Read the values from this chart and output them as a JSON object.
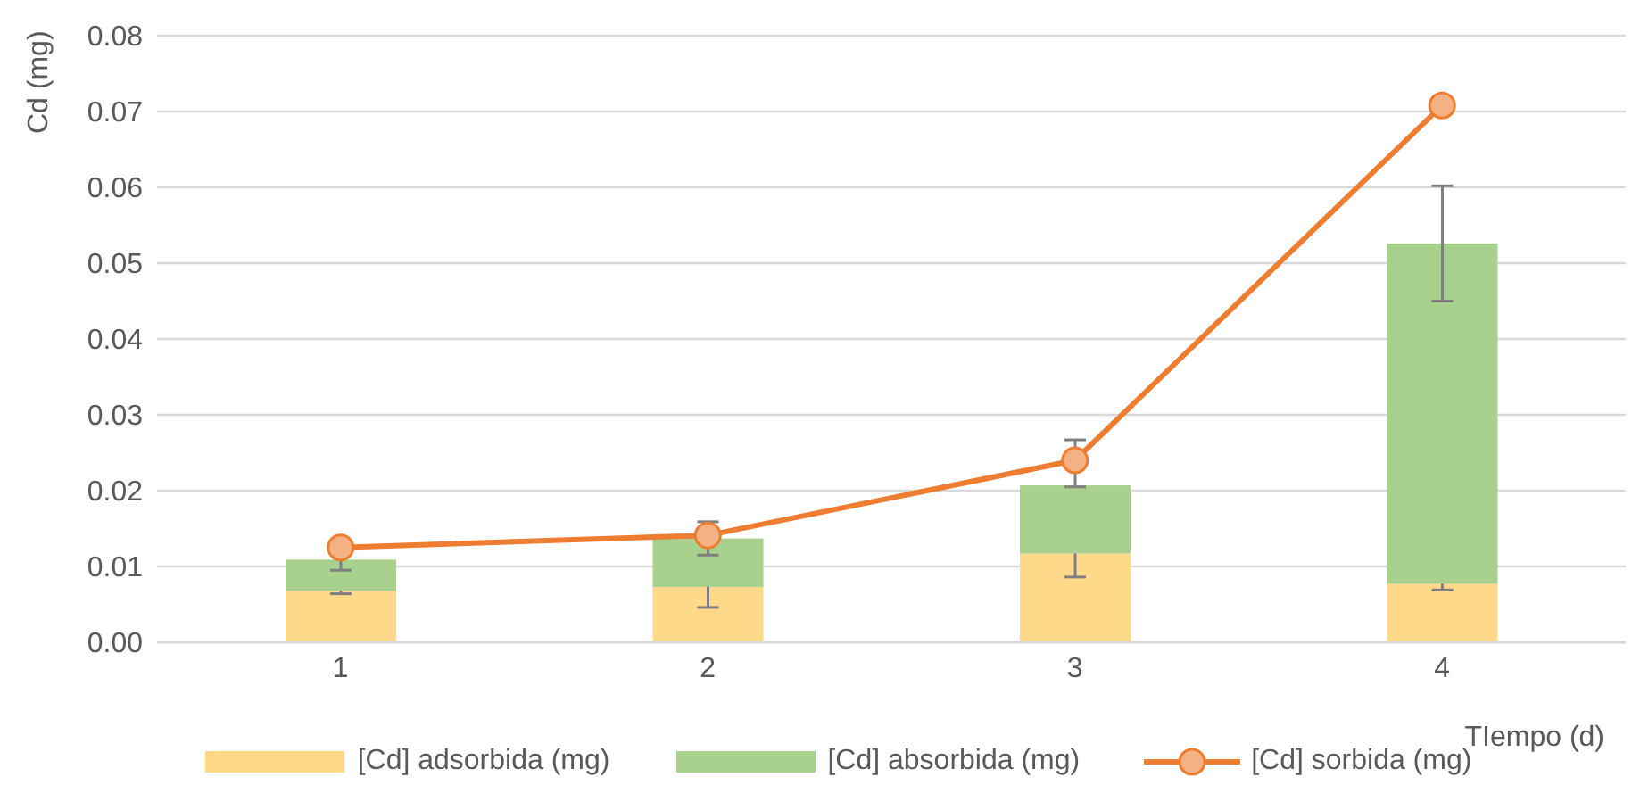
{
  "chart_data": {
    "type": "bar",
    "stacked": true,
    "xlabel": "TIempo (d)",
    "ylabel": "Cd (mg)",
    "categories": [
      "1",
      "2",
      "3",
      "4"
    ],
    "series": [
      {
        "name": "[Cd] adsorbida (mg)",
        "color": "#ffd98a",
        "values": [
          0.0068,
          0.0073,
          0.0117,
          0.0077
        ],
        "errors": [
          0.0004,
          0.0027,
          0.0031,
          0.0008
        ]
      },
      {
        "name": "[Cd] absorbida (mg)",
        "color": "#a9d18e",
        "values": [
          0.0041,
          0.0064,
          0.009,
          0.0449
        ],
        "errors": [
          0.0014,
          0.0022,
          [
            0.0205,
            0.0267
          ],
          0.0076
        ]
      },
      {
        "name": "[Cd] sorbida (mg)",
        "type": "line",
        "color": "#ed7d31",
        "marker": "circle",
        "values": [
          0.0125,
          0.0141,
          0.024,
          0.0708
        ]
      }
    ],
    "ylim": [
      0,
      0.08
    ],
    "yticks": [
      {
        "value": 0,
        "label": "0.00"
      },
      0.01,
      0.02,
      0.03,
      0.04,
      0.05,
      0.06,
      0.07,
      0.08
    ],
    "grid": "y",
    "legend": "bottom"
  }
}
